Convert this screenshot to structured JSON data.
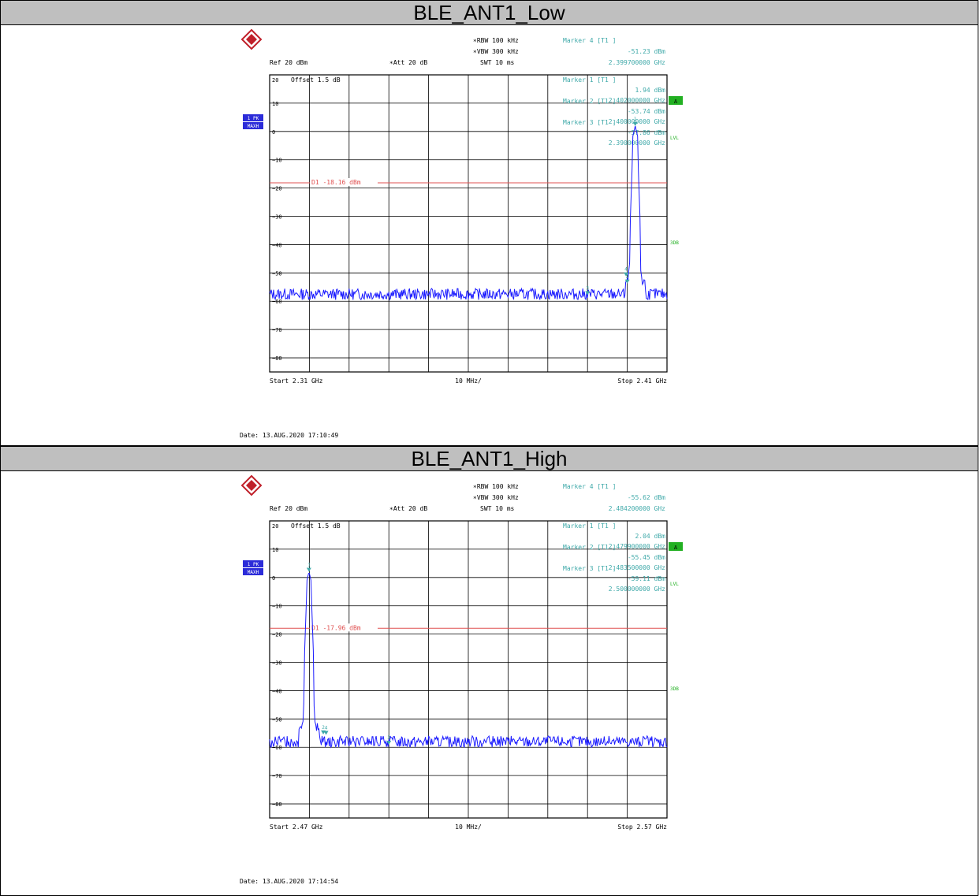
{
  "panels": [
    {
      "title": "BLE_ANT1_Low",
      "header": {
        "rbw": "RBW 100 kHz",
        "vbw": "VBW 300 kHz",
        "swt": "SWT 10 ms",
        "ref": "Ref  20 dBm",
        "att": "Att  20 dB",
        "offset": "Offset  1.5 dB",
        "trace_label": "1 PK",
        "trace_mode": "MAXH",
        "side_a": "A",
        "side_lvl": "LVL",
        "side_3db": "3DB",
        "start": "Start 2.31 GHz",
        "div": "10 MHz/",
        "stop": "Stop 2.41 GHz",
        "date": "Date: 13.AUG.2020  17:10:49",
        "d1_label": "D1 -18.16 dBm"
      },
      "markers": [
        {
          "label": "Marker 4 [T1 ]",
          "level": "-51.23 dBm",
          "freq": "2.399700000 GHz"
        },
        {
          "label": "Marker 1 [T1 ]",
          "level": "1.94 dBm",
          "freq": "2.402000000 GHz"
        },
        {
          "label": "Marker 2 [T1 ]",
          "level": "-53.74 dBm",
          "freq": "2.400000000 GHz"
        },
        {
          "label": "Marker 3 [T1 ]",
          "level": "-57.86 dBm",
          "freq": "2.390000000 GHz"
        }
      ],
      "chart_data": {
        "type": "line",
        "xlabel": "",
        "ylabel": "",
        "x_range": [
          2.31,
          2.41
        ],
        "ylim": [
          -85,
          20
        ],
        "yticks": [
          20,
          10,
          0,
          -10,
          -20,
          -30,
          -40,
          -50,
          -60,
          -70,
          -80
        ],
        "threshold_dbm": -18.16,
        "carrier_ghz": 2.402,
        "carrier_peak_dbm": 1.94,
        "noise_floor_dbm": -57.5,
        "marker_points": [
          {
            "id": "1",
            "x": 2.402,
            "y": 1.94
          },
          {
            "id": "2",
            "x": 2.4,
            "y": -53.74
          },
          {
            "id": "3",
            "x": 2.39,
            "y": -57.86
          },
          {
            "id": "4",
            "x": 2.3997,
            "y": -51.23
          }
        ]
      }
    },
    {
      "title": "BLE_ANT1_High",
      "header": {
        "rbw": "RBW 100 kHz",
        "vbw": "VBW 300 kHz",
        "swt": "SWT 10 ms",
        "ref": "Ref  20 dBm",
        "att": "Att  20 dB",
        "offset": "Offset  1.5 dB",
        "trace_label": "1 PK",
        "trace_mode": "MAXH",
        "side_a": "A",
        "side_lvl": "LVL",
        "side_3db": "3DB",
        "start": "Start 2.47 GHz",
        "div": "10 MHz/",
        "stop": "Stop 2.57 GHz",
        "date": "Date: 13.AUG.2020  17:14:54",
        "d1_label": "D1 -17.96 dBm"
      },
      "markers": [
        {
          "label": "Marker 4 [T1 ]",
          "level": "-55.62 dBm",
          "freq": "2.484200000 GHz"
        },
        {
          "label": "Marker 1 [T1 ]",
          "level": "2.04 dBm",
          "freq": "2.479900000 GHz"
        },
        {
          "label": "Marker 2 [T1 ]",
          "level": "-55.45 dBm",
          "freq": "2.483500000 GHz"
        },
        {
          "label": "Marker 3 [T1 ]",
          "level": "-59.11 dBm",
          "freq": "2.500000000 GHz"
        }
      ],
      "chart_data": {
        "type": "line",
        "xlabel": "",
        "ylabel": "",
        "x_range": [
          2.47,
          2.57
        ],
        "ylim": [
          -85,
          20
        ],
        "yticks": [
          20,
          10,
          0,
          -10,
          -20,
          -30,
          -40,
          -50,
          -60,
          -70,
          -80
        ],
        "threshold_dbm": -17.96,
        "carrier_ghz": 2.4799,
        "carrier_peak_dbm": 2.04,
        "noise_floor_dbm": -58.0,
        "marker_points": [
          {
            "id": "1",
            "x": 2.4799,
            "y": 2.04
          },
          {
            "id": "2",
            "x": 2.4835,
            "y": -55.45
          },
          {
            "id": "3",
            "x": 2.5,
            "y": -59.11
          },
          {
            "id": "4",
            "x": 2.4842,
            "y": -55.62
          }
        ]
      }
    }
  ],
  "colors": {
    "trace": "#1a1aff",
    "threshold": "#e05050",
    "marker_text": "#3fa9a9",
    "title_bg": "#bfbfbf",
    "trace_badge": "#2c2cd9",
    "side_badge": "#22b022"
  }
}
